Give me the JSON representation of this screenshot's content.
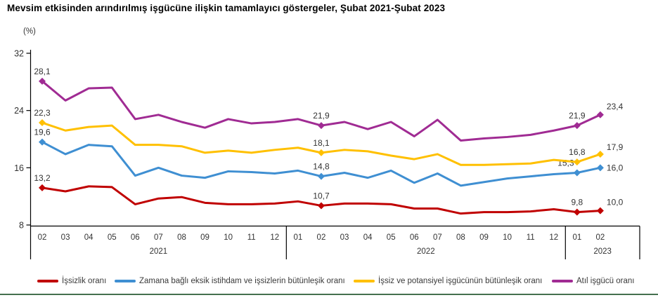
{
  "title": "Mevsim etkisinden arındırılmış işgücüne ilişkin tamamlayıcı göstergeler, Şubat 2021-Şubat 2023",
  "unit_label": "(%)",
  "footer_rule_color": "#44704F",
  "text_color": "#333333",
  "chart_data": {
    "type": "line",
    "x_months": [
      "02",
      "03",
      "04",
      "05",
      "06",
      "07",
      "08",
      "09",
      "10",
      "11",
      "12",
      "01",
      "02",
      "03",
      "04",
      "05",
      "06",
      "07",
      "08",
      "09",
      "10",
      "11",
      "12",
      "01",
      "02"
    ],
    "year_groups": [
      {
        "year": "2021",
        "count": 11
      },
      {
        "year": "2022",
        "count": 12
      },
      {
        "year": "2023",
        "count": 2
      }
    ],
    "ylim": [
      8,
      32
    ],
    "yticks": [
      8,
      16,
      24,
      32
    ],
    "grid": false,
    "legend_position": "bottom",
    "labeled_indices": [
      0,
      12,
      23,
      24
    ],
    "labeled_points_note": "values at labeled indices are printed on chart: Feb-2021, Feb-2022, Jan-2023, Feb-2023",
    "series": [
      {
        "name": "İşsizlik oranı",
        "color": "#C00000",
        "values": [
          13.2,
          12.7,
          13.4,
          13.3,
          10.9,
          11.7,
          11.9,
          11.1,
          10.9,
          10.9,
          11.0,
          11.3,
          10.7,
          11.0,
          11.0,
          10.9,
          10.3,
          10.3,
          9.6,
          9.8,
          9.8,
          9.9,
          10.2,
          9.8,
          10.0
        ]
      },
      {
        "name": "Zamana bağlı eksik istihdam ve işsizlerin bütünleşik oranı",
        "color": "#3F8FD2",
        "values": [
          19.6,
          17.9,
          19.2,
          19.0,
          14.9,
          16.0,
          14.9,
          14.6,
          15.5,
          15.4,
          15.2,
          15.6,
          14.8,
          15.3,
          14.6,
          15.6,
          13.9,
          15.2,
          13.5,
          14.0,
          14.5,
          14.8,
          15.1,
          15.3,
          16.0
        ]
      },
      {
        "name": "İşsiz ve potansiyel işgücünün bütünleşik oranı",
        "color": "#FFC000",
        "values": [
          22.3,
          21.2,
          21.7,
          21.9,
          19.2,
          19.2,
          19.0,
          18.1,
          18.4,
          18.1,
          18.5,
          18.8,
          18.1,
          18.5,
          18.3,
          17.7,
          17.2,
          17.9,
          16.4,
          16.4,
          16.5,
          16.6,
          17.1,
          16.8,
          17.9
        ]
      },
      {
        "name": "Atıl işgücü oranı",
        "color": "#A02B93",
        "values": [
          28.1,
          25.4,
          27.1,
          27.2,
          22.8,
          23.4,
          22.4,
          21.6,
          22.8,
          22.2,
          22.4,
          22.8,
          21.9,
          22.4,
          21.4,
          22.4,
          20.4,
          22.7,
          19.8,
          20.1,
          20.3,
          20.6,
          21.2,
          21.9,
          23.4
        ]
      }
    ]
  }
}
